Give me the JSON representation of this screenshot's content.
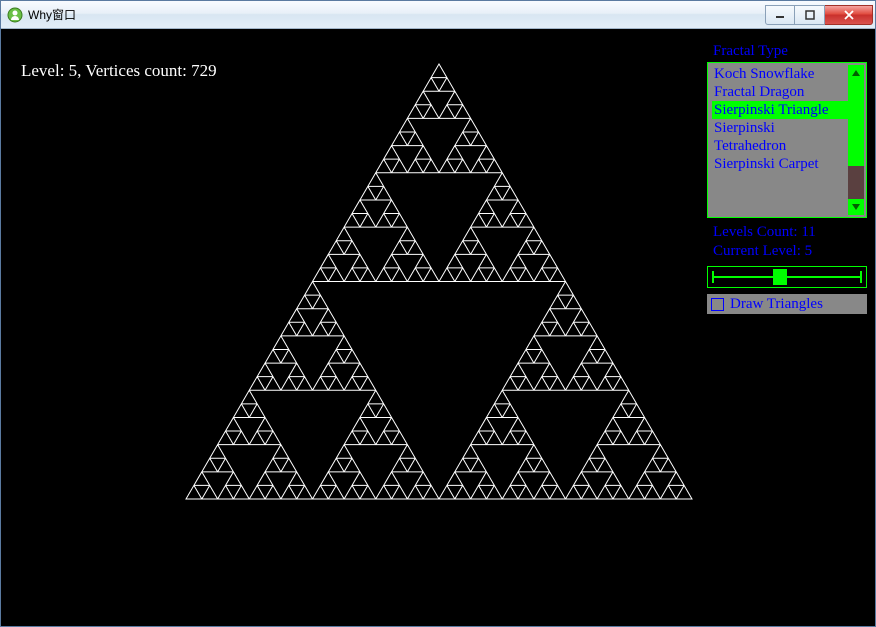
{
  "window": {
    "title": "Why窗口"
  },
  "status": {
    "text": "Level: 5, Vertices count: 729"
  },
  "fractal": {
    "level": 5,
    "stroke": "#ffffff",
    "background": "#000000"
  },
  "panel": {
    "type_label": "Fractal Type",
    "items": [
      "Koch Snowflake",
      "Fractal Dragon",
      "Sierpinski Triangle",
      "Sierpinski Tetrahedron",
      "Sierpinski Carpet"
    ],
    "selected_index": 2,
    "levels_count_label": "Levels Count: 11",
    "current_level_label": "Current Level: 5",
    "slider": {
      "min": 0,
      "max": 11,
      "value": 5
    },
    "checkbox_label": "Draw Triangles",
    "checkbox_checked": false,
    "colors": {
      "accent": "#00ff00",
      "text": "#0000ff",
      "panel_bg": "#888888"
    }
  }
}
